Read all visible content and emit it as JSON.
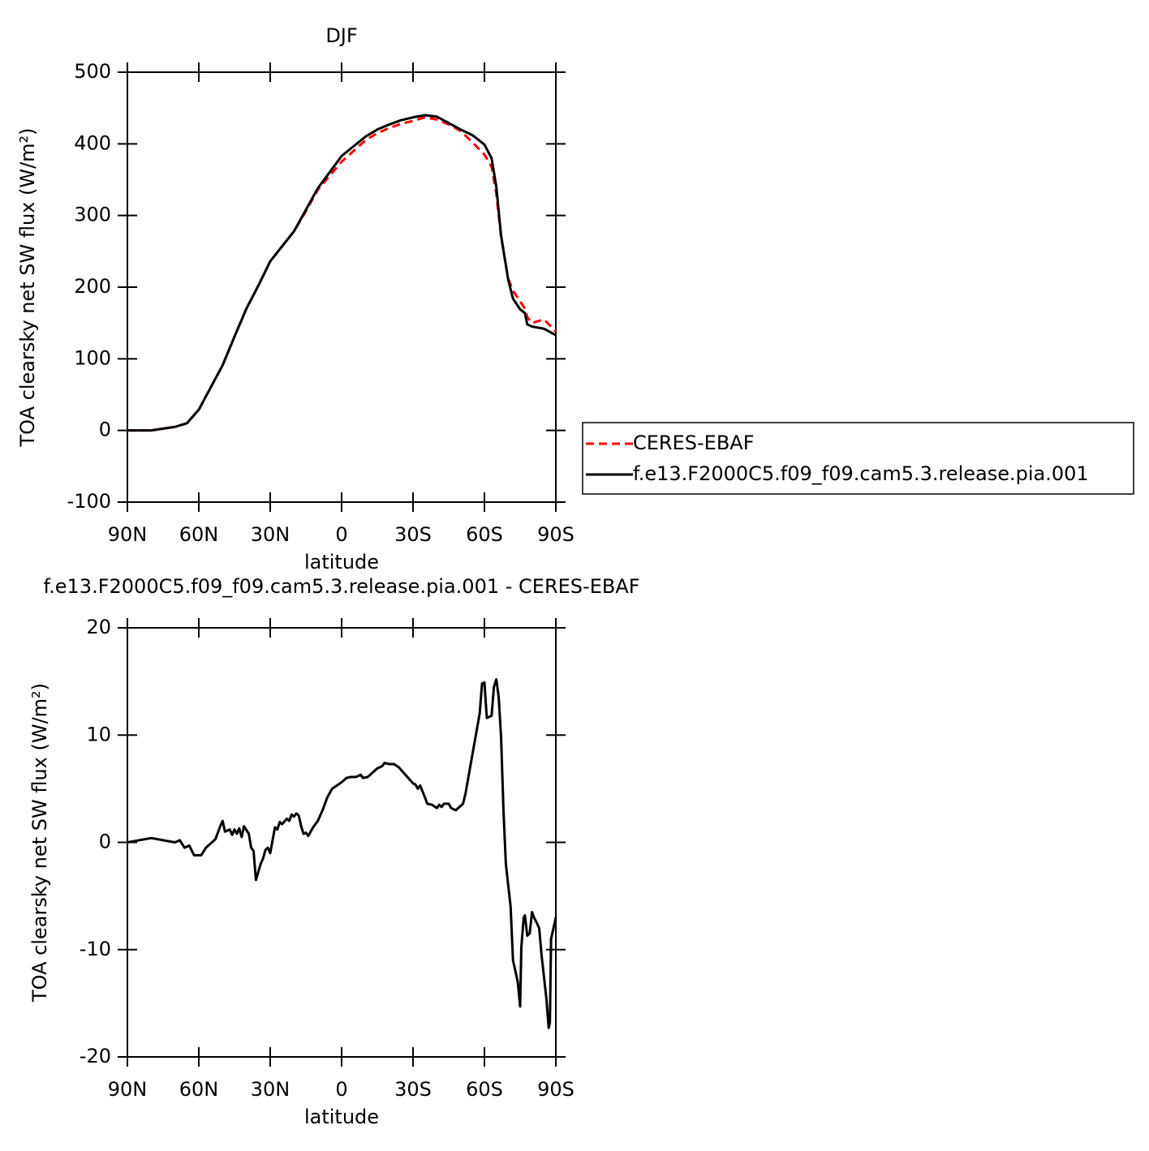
{
  "chart_data": [
    {
      "type": "line",
      "title": "DJF",
      "xlabel": "latitude",
      "ylabel": "TOA clearsky net SW flux (W/m²)",
      "x": [
        90,
        80,
        70,
        65,
        60,
        55,
        50,
        45,
        40,
        35,
        30,
        20,
        15,
        10,
        0,
        -10,
        -15,
        -20,
        -25,
        -30,
        -35,
        -40,
        -45,
        -50,
        -55,
        -60,
        -63,
        -65,
        -67,
        -70,
        -72,
        -75,
        -77,
        -78,
        -80,
        -85,
        -90
      ],
      "series": [
        {
          "name": "CERES-EBAF",
          "color": "#ff0000",
          "line_style": "dashed",
          "values": [
            0,
            0,
            5,
            10,
            29,
            60,
            91,
            131,
            170,
            202,
            236,
            278,
            306,
            336,
            375,
            405,
            415,
            422,
            428,
            432,
            437,
            434,
            427,
            418,
            402,
            385,
            368,
            330,
            270,
            212,
            195,
            180,
            170,
            158,
            150,
            155,
            138
          ]
        },
        {
          "name": "f.e13.F2000C5.f09_f09.cam5.3.release.pia.001",
          "color": "#000000",
          "line_style": "solid",
          "values": [
            0,
            0,
            5,
            10,
            29,
            60,
            91,
            131,
            170,
            202,
            236,
            278,
            308,
            338,
            383,
            410,
            420,
            427,
            433,
            437,
            440,
            438,
            429,
            420,
            412,
            399,
            380,
            340,
            272,
            210,
            184,
            169,
            164,
            148,
            145,
            142,
            133
          ]
        }
      ],
      "xlim": [
        90,
        -90
      ],
      "xticks": [
        {
          "value": 90,
          "label": "90N"
        },
        {
          "value": 60,
          "label": "60N"
        },
        {
          "value": 30,
          "label": "30N"
        },
        0,
        {
          "value": -30,
          "label": "30S"
        },
        {
          "value": -60,
          "label": "60S"
        },
        {
          "value": -90,
          "label": "90S"
        }
      ],
      "ylim": [
        -100,
        500
      ],
      "yticks": [
        -100,
        0,
        100,
        200,
        300,
        400,
        500
      ],
      "legend": "right"
    },
    {
      "type": "line",
      "title": "f.e13.F2000C5.f09_f09.cam5.3.release.pia.001 - CERES-EBAF",
      "xlabel": "latitude",
      "ylabel": "TOA clearsky net SW flux (W/m²)",
      "x": [
        90,
        80,
        75,
        70,
        68,
        66,
        64,
        62,
        59,
        57,
        55,
        53,
        51,
        50,
        49,
        47,
        46,
        45,
        44,
        43,
        42,
        41,
        39,
        38,
        37,
        36,
        34,
        33,
        32,
        31,
        30,
        28,
        27,
        26,
        25,
        23,
        22,
        21,
        20,
        19,
        18,
        17,
        16,
        15,
        14,
        12,
        10,
        8,
        6,
        4,
        2,
        0,
        -2,
        -4,
        -6,
        -8,
        -9,
        -11,
        -13,
        -15,
        -17,
        -18,
        -20,
        -22,
        -24,
        -26,
        -28,
        -30,
        -31,
        -32,
        -33,
        -35,
        -36,
        -38,
        -40,
        -41,
        -42,
        -43,
        -45,
        -46,
        -48,
        -50,
        -51,
        -52,
        -54,
        -56,
        -58,
        -59,
        -60,
        -61,
        -63,
        -64,
        -65,
        -66,
        -67,
        -68,
        -69,
        -71,
        -72,
        -74,
        -75,
        -75.5,
        -76.5,
        -77,
        -78,
        -79,
        -80,
        -81,
        -82,
        -83,
        -84,
        -85,
        -86,
        -87,
        -87.5,
        -88,
        -89,
        -90
      ],
      "series": [
        {
          "name": "f.e13.F2000C5.f09_f09.cam5.3.release.pia.001 - CERES-EBAF",
          "color": "#000000",
          "line_style": "solid",
          "values": [
            0,
            0.4,
            0.2,
            0,
            0.2,
            -0.5,
            -0.3,
            -1.2,
            -1.2,
            -0.5,
            -0.1,
            0.3,
            1.5,
            2.0,
            1.0,
            1.2,
            0.7,
            1.2,
            0.8,
            1.3,
            0.5,
            1.5,
            0.8,
            -0.5,
            -0.8,
            -3.5,
            -2.0,
            -1.5,
            -0.7,
            -0.5,
            -1.0,
            1.4,
            1.2,
            1.9,
            1.7,
            2.2,
            2.0,
            2.6,
            2.4,
            2.7,
            2.5,
            1.5,
            0.8,
            0.9,
            0.6,
            1.4,
            2.0,
            3.0,
            4.2,
            5.0,
            5.3,
            5.6,
            6.0,
            6.1,
            6.1,
            6.3,
            6.0,
            6.1,
            6.5,
            6.9,
            7.1,
            7.4,
            7.3,
            7.3,
            7.0,
            6.5,
            6.0,
            5.5,
            5.4,
            5.0,
            5.3,
            4.2,
            3.6,
            3.5,
            3.2,
            3.5,
            3.3,
            3.6,
            3.6,
            3.2,
            3.0,
            3.4,
            3.6,
            4.5,
            7.0,
            9.5,
            12.0,
            14.8,
            14.9,
            11.6,
            11.8,
            14.5,
            15.2,
            13.5,
            9.8,
            3.0,
            -2.0,
            -6.0,
            -11.0,
            -13.0,
            -15.3,
            -9.8,
            -7.0,
            -6.8,
            -8.7,
            -8.5,
            -6.5,
            -7.1,
            -7.5,
            -8.0,
            -10.5,
            -12.5,
            -14.5,
            -17.3,
            -16.8,
            -9.0,
            -8.0,
            -7.0
          ]
        }
      ],
      "xlim": [
        90,
        -90
      ],
      "xticks": [
        {
          "value": 90,
          "label": "90N"
        },
        {
          "value": 60,
          "label": "60N"
        },
        {
          "value": 30,
          "label": "30N"
        },
        0,
        {
          "value": -30,
          "label": "30S"
        },
        {
          "value": -60,
          "label": "60S"
        },
        {
          "value": -90,
          "label": "90S"
        }
      ],
      "ylim": [
        -20,
        20
      ],
      "yticks": [
        -20,
        -10,
        0,
        10,
        20
      ]
    }
  ]
}
